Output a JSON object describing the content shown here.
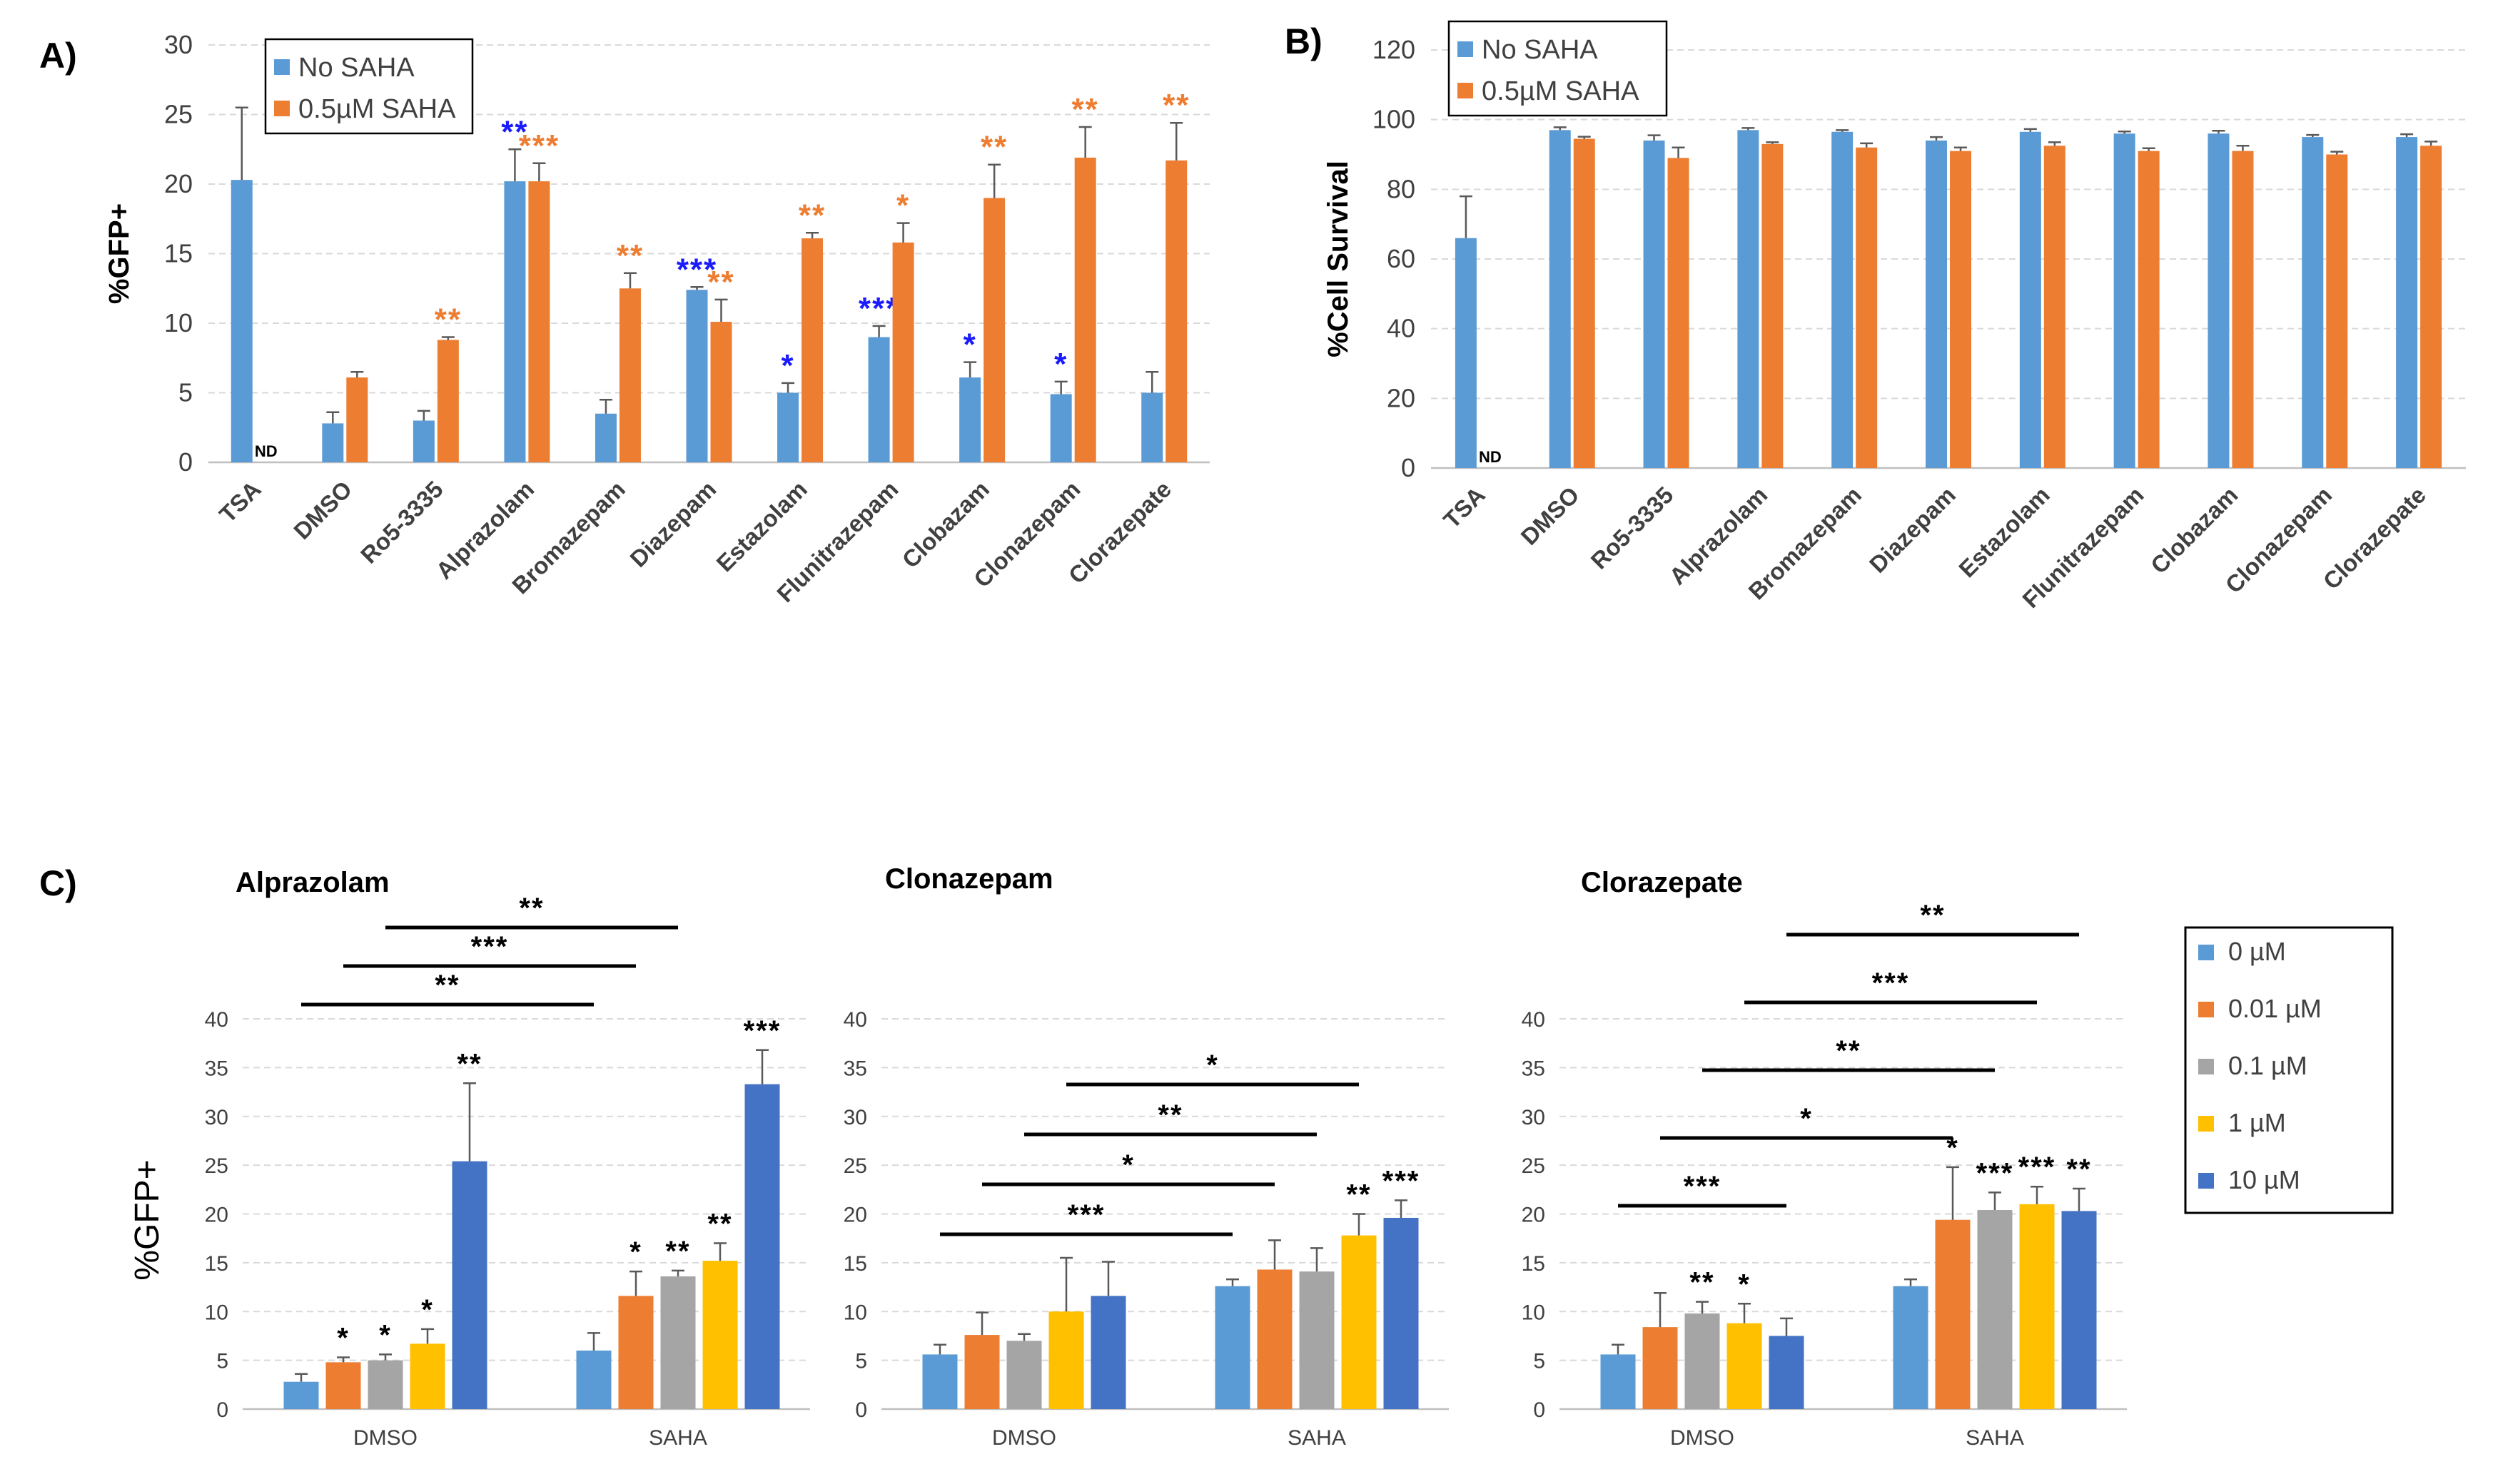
{
  "colors": {
    "blue": "#5b9bd5",
    "orange": "#ed7d31",
    "gray": "#a5a5a5",
    "yellow": "#ffc000",
    "darkblue": "#4472c4",
    "star_blue": "#1a1aff",
    "star_orange": "#ed7d31",
    "axis": "#595959",
    "grid": "#d9d9d9",
    "text": "#000000"
  },
  "chart_data": [
    {
      "panel": "A)",
      "type": "bar",
      "ylabel": "%GFP+",
      "ylim": [
        0,
        30
      ],
      "yticks": [
        0,
        5,
        10,
        15,
        20,
        25,
        30
      ],
      "legend_position": "top-left",
      "categories": [
        "TSA",
        "DMSO",
        "Ro5-3335",
        "Alprazolam",
        "Bromazepam",
        "Diazepam",
        "Estazolam",
        "Flunitrazepam",
        "Clobazam",
        "Clonazepam",
        "Clorazepate"
      ],
      "series": [
        {
          "name": "No SAHA",
          "color_key": "blue",
          "values": [
            20.3,
            2.8,
            3.0,
            20.2,
            3.5,
            12.4,
            5.0,
            9.0,
            6.1,
            4.9,
            5.0
          ],
          "errors": [
            5.2,
            0.8,
            0.7,
            2.3,
            1.0,
            0.2,
            0.7,
            0.8,
            1.1,
            0.9,
            1.5
          ],
          "stars": [
            "",
            "",
            "",
            "**",
            "",
            "***",
            "*",
            "***",
            "*",
            "*",
            ""
          ]
        },
        {
          "name": "0.5µM SAHA",
          "color_key": "orange",
          "values": [
            null,
            6.1,
            8.8,
            20.2,
            12.5,
            10.1,
            16.1,
            15.8,
            19.0,
            21.9,
            21.7
          ],
          "errors": [
            null,
            0.4,
            0.2,
            1.3,
            1.1,
            1.6,
            0.4,
            1.4,
            2.4,
            2.2,
            2.7
          ],
          "stars": [
            "",
            "",
            "**",
            "***",
            "**",
            "**",
            "**",
            "*",
            "**",
            "**",
            "**"
          ]
        }
      ],
      "annotations": [
        {
          "category": "TSA",
          "series": 1,
          "text": "ND"
        }
      ]
    },
    {
      "panel": "B)",
      "type": "bar",
      "ylabel": "%Cell Survival",
      "ylim": [
        0,
        120
      ],
      "yticks": [
        0,
        20,
        40,
        60,
        80,
        100,
        120
      ],
      "legend_position": "top-left",
      "categories": [
        "TSA",
        "DMSO",
        "Ro5-3335",
        "Alprazolam",
        "Bromazepam",
        "Diazepam",
        "Estazolam",
        "Flunitrazepam",
        "Clobazam",
        "Clonazepam",
        "Clorazepate"
      ],
      "series": [
        {
          "name": "No SAHA",
          "color_key": "blue",
          "values": [
            66,
            97,
            94,
            97,
            96.5,
            94,
            96.5,
            96,
            96,
            95,
            95
          ],
          "errors": [
            12,
            0.8,
            1.5,
            0.6,
            0.5,
            1,
            0.8,
            0.6,
            0.8,
            0.6,
            0.8
          ]
        },
        {
          "name": "0.5µM SAHA",
          "color_key": "orange",
          "values": [
            null,
            94.5,
            89,
            93,
            92,
            91,
            92.5,
            91,
            91,
            90,
            92.5
          ],
          "errors": [
            null,
            0.6,
            3,
            0.5,
            1.2,
            1,
            1,
            0.8,
            1.5,
            0.8,
            1.2
          ]
        }
      ],
      "annotations": [
        {
          "category": "TSA",
          "series": 1,
          "text": "ND"
        }
      ]
    },
    {
      "panel": "C)",
      "type": "bar",
      "ylabel": "%GFP+",
      "ylim": [
        0,
        40
      ],
      "yticks": [
        0,
        5,
        10,
        15,
        20,
        25,
        30,
        35,
        40
      ],
      "legend_position": "right",
      "legend": [
        "0 µM",
        "0.01 µM",
        "0.1 µM",
        "1 µM",
        "10 µM"
      ],
      "legend_color_keys": [
        "blue",
        "orange",
        "gray",
        "yellow",
        "darkblue"
      ],
      "subplots": [
        {
          "title": "Alprazolam",
          "categories": [
            "DMSO",
            "SAHA"
          ],
          "values": [
            [
              2.8,
              4.8,
              5.0,
              6.7,
              25.4
            ],
            [
              6.0,
              11.6,
              13.6,
              15.2,
              33.3
            ]
          ],
          "errors": [
            [
              0.8,
              0.5,
              0.6,
              1.5,
              8.0
            ],
            [
              1.8,
              2.5,
              0.6,
              1.8,
              3.5
            ]
          ],
          "stars": [
            [
              "",
              "*",
              "*",
              "*",
              "**"
            ],
            [
              "",
              "*",
              "**",
              "**",
              "***"
            ]
          ],
          "brackets": [
            {
              "from": [
                0,
                0
              ],
              "to": [
                1,
                0
              ],
              "label": "**"
            },
            {
              "from": [
                0,
                1
              ],
              "to": [
                1,
                1
              ],
              "label": "***"
            },
            {
              "from": [
                0,
                2
              ],
              "to": [
                1,
                2
              ],
              "label": "**"
            }
          ]
        },
        {
          "title": "Clonazepam",
          "categories": [
            "DMSO",
            "SAHA"
          ],
          "values": [
            [
              5.6,
              7.6,
              7.0,
              10.0,
              11.6
            ],
            [
              12.6,
              14.3,
              14.1,
              17.8,
              19.6
            ]
          ],
          "errors": [
            [
              1.0,
              2.3,
              0.7,
              5.5,
              3.5
            ],
            [
              0.7,
              3.0,
              2.4,
              2.2,
              1.8
            ]
          ],
          "stars": [
            [
              "",
              "",
              "",
              "",
              ""
            ],
            [
              "",
              "",
              "",
              "**",
              "***"
            ]
          ],
          "brackets": [
            {
              "from": [
                0,
                0
              ],
              "to": [
                1,
                0
              ],
              "label": "***"
            },
            {
              "from": [
                0,
                1
              ],
              "to": [
                1,
                1
              ],
              "label": "*"
            },
            {
              "from": [
                0,
                2
              ],
              "to": [
                1,
                2
              ],
              "label": "**"
            },
            {
              "from": [
                0,
                3
              ],
              "to": [
                1,
                3
              ],
              "label": "*"
            }
          ]
        },
        {
          "title": "Clorazepate",
          "categories": [
            "DMSO",
            "SAHA"
          ],
          "values": [
            [
              5.6,
              8.4,
              9.8,
              8.8,
              7.5
            ],
            [
              12.6,
              19.4,
              20.4,
              21.0,
              20.3
            ]
          ],
          "errors": [
            [
              1.0,
              3.5,
              1.2,
              2.0,
              1.8
            ],
            [
              0.7,
              5.4,
              1.8,
              1.8,
              2.3
            ]
          ],
          "stars": [
            [
              "",
              "",
              "**",
              "*",
              ""
            ],
            [
              "",
              "*",
              "***",
              "***",
              "**"
            ]
          ],
          "brackets": [
            {
              "from": [
                0,
                0
              ],
              "to": [
                0,
                4
              ],
              "label": "***"
            },
            {
              "from": [
                0,
                1
              ],
              "to": [
                1,
                1
              ],
              "label": "*"
            },
            {
              "from": [
                0,
                2
              ],
              "to": [
                1,
                2
              ],
              "label": "**"
            },
            {
              "from": [
                0,
                3
              ],
              "to": [
                1,
                3
              ],
              "label": "***"
            },
            {
              "from": [
                0,
                4
              ],
              "to": [
                1,
                4
              ],
              "label": "**"
            }
          ]
        }
      ]
    }
  ]
}
